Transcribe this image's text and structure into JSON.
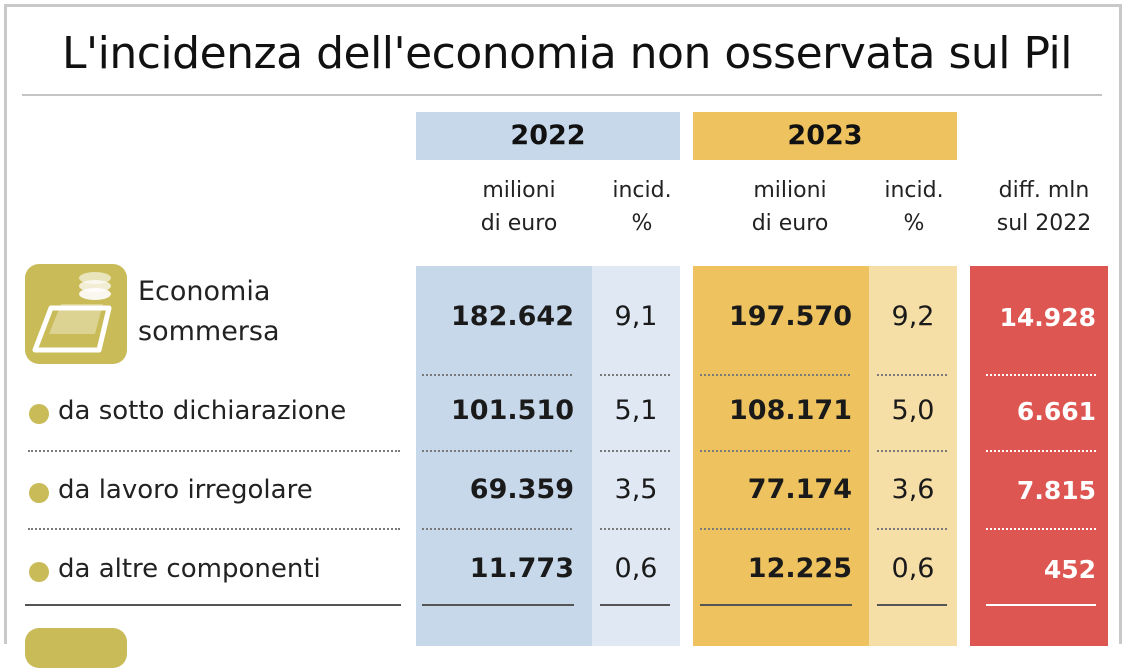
{
  "title": "L'incidenza dell'economia non osservata sul Pil",
  "headers": {
    "year_a": "2022",
    "year_b": "2023",
    "millions_a": [
      "milioni",
      "di euro"
    ],
    "incid_a": [
      "incid.",
      "%"
    ],
    "millions_b": [
      "milioni",
      "di euro"
    ],
    "incid_b": [
      "incid.",
      "%"
    ],
    "diff": [
      "diff. mln",
      "sul 2022"
    ]
  },
  "colors": {
    "blue": "#c7d8ea",
    "blue_light": "#dfe8f3",
    "yellow": "#eec25e",
    "yellow_light": "#f6dfa6",
    "red": "#dd5651",
    "olive": "#c9bb58"
  },
  "chart_data": {
    "type": "table",
    "title": "L'incidenza dell'economia non osservata sul Pil",
    "columns": [
      "2022 milioni di euro",
      "2022 incid. %",
      "2023 milioni di euro",
      "2023 incid. %",
      "diff. mln sul 2022"
    ],
    "rows": [
      {
        "label": "Economia sommersa",
        "label_lines": [
          "Economia",
          "sommersa"
        ],
        "icon": "money-coins-icon",
        "m2022": "182.642",
        "i2022": "9,1",
        "m2023": "197.570",
        "i2023": "9,2",
        "diff": "14.928"
      },
      {
        "label": "da sotto dichiarazione",
        "m2022": "101.510",
        "i2022": "5,1",
        "m2023": "108.171",
        "i2023": "5,0",
        "diff": "6.661"
      },
      {
        "label": "da lavoro irregolare",
        "m2022": "69.359",
        "i2022": "3,5",
        "m2023": "77.174",
        "i2023": "3,6",
        "diff": "7.815"
      },
      {
        "label": "da altre componenti",
        "m2022": "11.773",
        "i2022": "0,6",
        "m2023": "12.225",
        "i2023": "0,6",
        "diff": "452"
      }
    ]
  }
}
